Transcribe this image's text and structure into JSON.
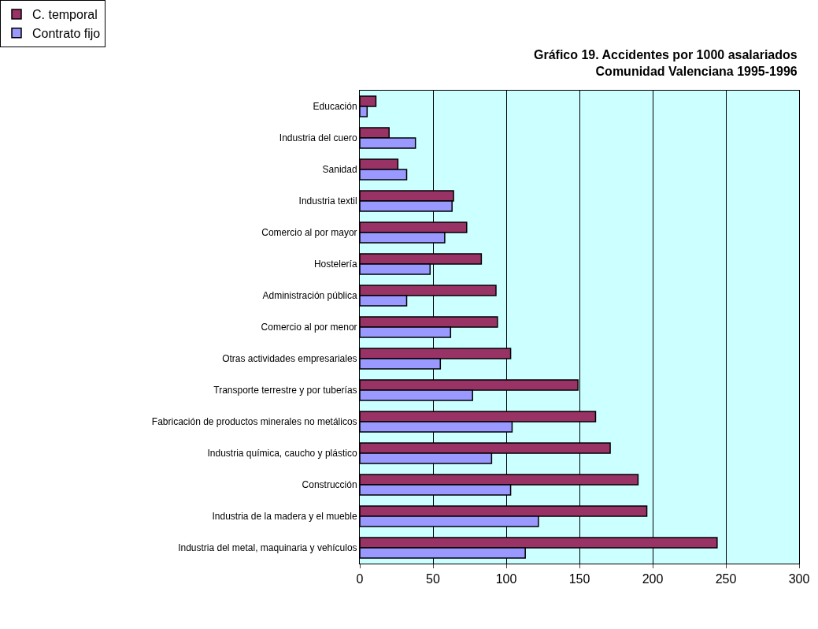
{
  "chart_data": {
    "type": "bar",
    "orientation": "horizontal",
    "title": "Gráfico 19. Accidentes por 1000 asalariados\nComunidad Valenciana 1995-1996",
    "categories": [
      "Educación",
      "Industria del cuero",
      "Sanidad",
      "Industria textil",
      "Comercio al por mayor",
      "Hostelería",
      "Administración pública",
      "Comercio al por menor",
      "Otras actividades empresariales",
      "Transporte terrestre y por tuberías",
      "Fabricación de productos minerales no metálicos",
      "Industria química, caucho y plástico",
      "Construcción",
      "Industria de la madera y el mueble",
      "Industria del metal, maquinaria y vehículos"
    ],
    "series": [
      {
        "name": "C. temporal",
        "color": "#993366",
        "values": [
          11,
          20,
          26,
          64,
          73,
          83,
          93,
          94,
          103,
          149,
          161,
          171,
          190,
          196,
          244
        ]
      },
      {
        "name": "Contrato fijo",
        "color": "#9999ff",
        "values": [
          5,
          38,
          32,
          63,
          58,
          48,
          32,
          62,
          55,
          77,
          104,
          90,
          103,
          122,
          113
        ]
      }
    ],
    "xlim": [
      0,
      300
    ],
    "xticks": [
      0,
      50,
      100,
      150,
      200,
      250,
      300
    ],
    "grid": "x",
    "legend": "top left"
  }
}
